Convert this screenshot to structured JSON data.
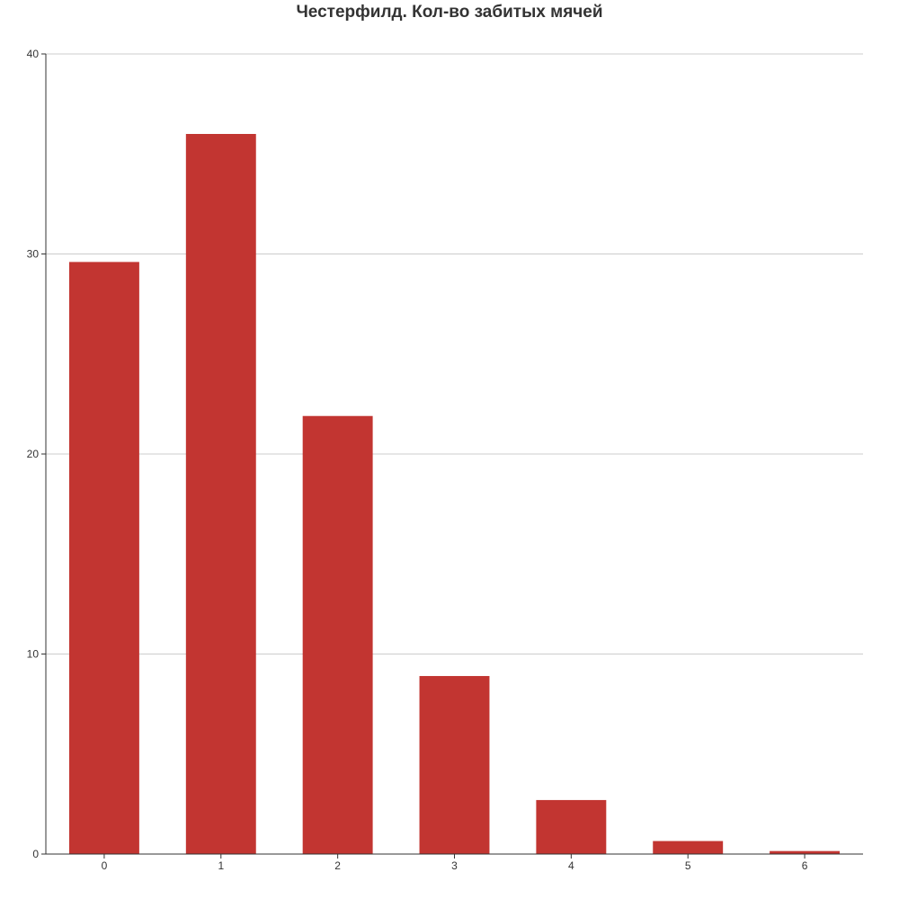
{
  "chart_data": {
    "type": "bar",
    "title": "Честерфилд. Кол-во забитых мячей",
    "xlabel": "",
    "ylabel": "",
    "categories": [
      "0",
      "1",
      "2",
      "3",
      "4",
      "5",
      "6"
    ],
    "values": [
      29.6,
      36.0,
      21.9,
      8.9,
      2.7,
      0.65,
      0.15
    ],
    "ylim": [
      0,
      40
    ],
    "yticks": [
      "0",
      "10",
      "20",
      "30",
      "40"
    ],
    "grid": true,
    "legend": "none",
    "bar_color": "#c23531",
    "grid_color": "#cccccc",
    "axis_color": "#333333"
  }
}
